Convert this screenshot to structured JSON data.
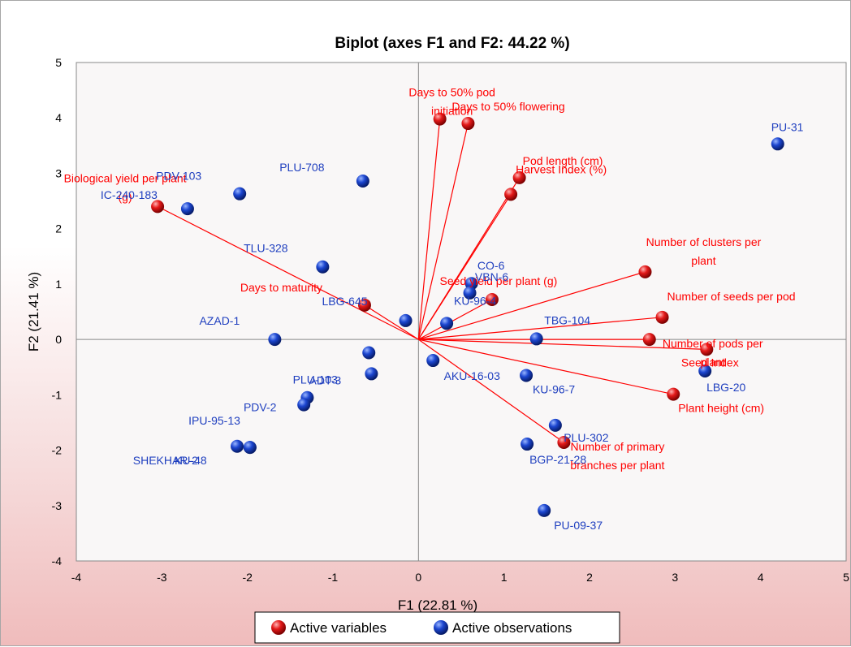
{
  "chart_data": {
    "type": "scatter",
    "title": "Biplot (axes F1 and F2: 44.22 %)",
    "xlabel": "F1 (22.81 %)",
    "ylabel": "F2 (21.41 %)",
    "xlim": [
      -4,
      5
    ],
    "ylim": [
      -4,
      5
    ],
    "x_ticks": [
      -4,
      -3,
      -2,
      -1,
      0,
      1,
      2,
      3,
      4,
      5
    ],
    "y_ticks": [
      -4,
      -3,
      -2,
      -1,
      0,
      1,
      2,
      3,
      4,
      5
    ],
    "legend_position": "bottom-center",
    "colors": {
      "variables": "#ff0000",
      "observations": "#1f3fbf",
      "vectors": "#ff0000"
    },
    "series": [
      {
        "name": "Active variables",
        "points": [
          {
            "label": "Days to 50% pod initiation",
            "x": 0.25,
            "y": 3.98,
            "label_lines": [
              "Days to 50% pod",
              "initiation"
            ],
            "anchor": "middle",
            "dx": 15,
            "dy": -28
          },
          {
            "label": "Days to 50% flowering",
            "x": 0.58,
            "y": 3.9,
            "label_lines": [
              "Days to 50% flowering"
            ],
            "anchor": "start",
            "dx": -20,
            "dy": -16
          },
          {
            "label": "Pod length (cm)",
            "x": 1.18,
            "y": 2.92,
            "label_lines": [
              "Pod length (cm)"
            ],
            "anchor": "start",
            "dx": 4,
            "dy": -16
          },
          {
            "label": "Harvest Index (%)",
            "x": 1.08,
            "y": 2.62,
            "label_lines": [
              "Harvest Index (%)"
            ],
            "anchor": "start",
            "dx": 6,
            "dy": -26
          },
          {
            "label": "Biological yield per plant (g)",
            "x": -3.05,
            "y": 2.4,
            "label_lines": [
              "Biological yield per plant",
              "(g)"
            ],
            "anchor": "middle",
            "dx": -40,
            "dy": -30
          },
          {
            "label": "Number of clusters per plant",
            "x": 2.65,
            "y": 1.22,
            "label_lines": [
              "Number of clusters per",
              "plant"
            ],
            "anchor": "middle",
            "dx": 72,
            "dy": -32
          },
          {
            "label": "Seed yield per plant (g)",
            "x": 0.86,
            "y": 0.72,
            "label_lines": [
              "Seed yield per plant (g)"
            ],
            "anchor": "middle",
            "dx": 8,
            "dy": -18
          },
          {
            "label": "Days to maturity",
            "x": -0.63,
            "y": 0.62,
            "label_lines": [
              "Days to maturity"
            ],
            "anchor": "end",
            "dx": -52,
            "dy": -17
          },
          {
            "label": "Number of seeds per pod",
            "x": 2.85,
            "y": 0.4,
            "label_lines": [
              "Number of seeds per pod"
            ],
            "anchor": "start",
            "dx": 6,
            "dy": -21
          },
          {
            "label": "Number of pods per plant",
            "x": 2.7,
            "y": 0.0,
            "label_lines": [
              "Number of pods per",
              "plant"
            ],
            "anchor": "middle",
            "dx": 78,
            "dy": 10
          },
          {
            "label": "Seed Index",
            "x": 3.37,
            "y": -0.18,
            "label_lines": [
              "Seed Index"
            ],
            "anchor": "middle",
            "dx": 4,
            "dy": 21
          },
          {
            "label": "Plant height (cm)",
            "x": 2.98,
            "y": -0.99,
            "label_lines": [
              "Plant height (cm)"
            ],
            "anchor": "start",
            "dx": 6,
            "dy": 22
          },
          {
            "label": "Number of primary branches per plant",
            "x": 1.7,
            "y": -1.86,
            "label_lines": [
              "Number of primary",
              "branches per plant"
            ],
            "anchor": "middle",
            "dx": 66,
            "dy": 10
          }
        ]
      },
      {
        "name": "Active observations",
        "points": [
          {
            "label": "PU-31",
            "x": 4.2,
            "y": 3.53,
            "anchor": "start",
            "dx": -8,
            "dy": -16
          },
          {
            "label": "PLU-708",
            "x": -0.65,
            "y": 2.86,
            "anchor": "middle",
            "dx": -75,
            "dy": -12
          },
          {
            "label": "PDV-103",
            "x": -2.09,
            "y": 2.63,
            "anchor": "middle",
            "dx": -75,
            "dy": -17
          },
          {
            "label": "IC-240-183",
            "x": -2.7,
            "y": 2.36,
            "anchor": "middle",
            "dx": -72,
            "dy": -12
          },
          {
            "label": "TLU-328",
            "x": -1.12,
            "y": 1.31,
            "anchor": "middle",
            "dx": -70,
            "dy": -18
          },
          {
            "label": "CO-6",
            "x": 0.62,
            "y": 1.01,
            "anchor": "middle",
            "dx": 24,
            "dy": -17
          },
          {
            "label": "VBN-6",
            "x": 0.6,
            "y": 0.84,
            "anchor": "middle",
            "dx": 27,
            "dy": -15
          },
          {
            "label": "KU-96-4",
            "x": 0.33,
            "y": 0.29,
            "anchor": "middle",
            "dx": 35,
            "dy": -23
          },
          {
            "label": "LBG-645",
            "x": -0.15,
            "y": 0.34,
            "anchor": "middle",
            "dx": -75,
            "dy": -19
          },
          {
            "label": "TBG-104",
            "x": 1.38,
            "y": 0.01,
            "anchor": "middle",
            "dx": 38,
            "dy": -18
          },
          {
            "label": "AZAD-1",
            "x": -1.68,
            "y": 0.0,
            "anchor": "middle",
            "dx": -68,
            "dy": -18
          },
          {
            "label": "LBG-20",
            "x": 3.35,
            "y": -0.57,
            "anchor": "middle",
            "dx": 26,
            "dy": 25
          },
          {
            "label": "PLU-103",
            "x": -0.58,
            "y": -0.24,
            "anchor": "middle",
            "dx": -66,
            "dy": 38
          },
          {
            "label": "AKU-16-03",
            "x": 0.17,
            "y": -0.38,
            "anchor": "middle",
            "dx": 48,
            "dy": 24
          },
          {
            "label": "KU-96-7",
            "x": 1.26,
            "y": -0.65,
            "anchor": "middle",
            "dx": 34,
            "dy": 22
          },
          {
            "label": "(unlabeled)",
            "x": -0.55,
            "y": -0.62,
            "anchor": "middle",
            "dx": 0,
            "dy": 0,
            "hide_label": true
          },
          {
            "label": "ADT-3",
            "x": -1.3,
            "y": -1.05,
            "anchor": "middle",
            "dx": 22,
            "dy": -16
          },
          {
            "label": "PDV-2",
            "x": -1.34,
            "y": -1.18,
            "anchor": "middle",
            "dx": -54,
            "dy": 8
          },
          {
            "label": "IPU-95-13",
            "x": -2.12,
            "y": -1.93,
            "anchor": "middle",
            "dx": -28,
            "dy": -27
          },
          {
            "label": "SHEKHAR-2",
            "x": -1.97,
            "y": -1.95,
            "anchor": "middle",
            "dx": -104,
            "dy": 21
          },
          {
            "label": "KU-48",
            "x": -1.97,
            "y": -1.95,
            "anchor": "middle",
            "dx": -73,
            "dy": 21
          },
          {
            "label": "PLU-302",
            "x": 1.6,
            "y": -1.55,
            "anchor": "middle",
            "dx": 38,
            "dy": 20
          },
          {
            "label": "BGP-21-28",
            "x": 1.27,
            "y": -1.89,
            "anchor": "middle",
            "dx": 38,
            "dy": 24
          },
          {
            "label": "PU-09-37",
            "x": 1.47,
            "y": -3.09,
            "anchor": "middle",
            "dx": 42,
            "dy": 23
          }
        ]
      }
    ]
  }
}
